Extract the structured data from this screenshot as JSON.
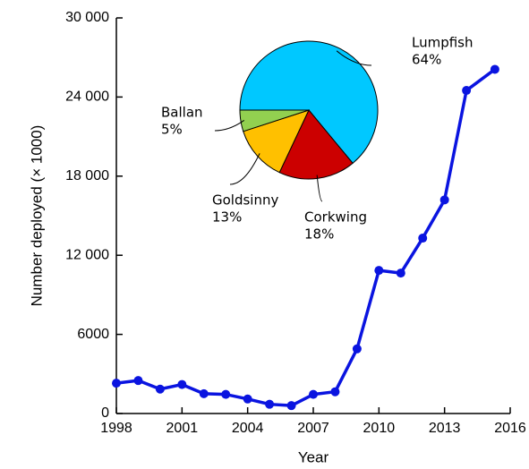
{
  "chart_data": [
    {
      "type": "line",
      "x_label": "Year",
      "y_label": "Number deployed (× 1000)",
      "x": [
        1998,
        1999,
        2000,
        2001,
        2002,
        2003,
        2004,
        2005,
        2006,
        2007,
        2008,
        2009,
        2010,
        2011,
        2012,
        2013,
        2014,
        2015.3
      ],
      "values": [
        2300,
        2500,
        1850,
        2200,
        1500,
        1450,
        1100,
        700,
        600,
        1450,
        1650,
        4900,
        10850,
        10650,
        13300,
        16200,
        24500,
        26100
      ],
      "color": "#0a14e0",
      "xlim": [
        1998,
        2016
      ],
      "xticks": [
        1998,
        2001,
        2004,
        2007,
        2010,
        2013,
        2016
      ],
      "ylim": [
        0,
        30000
      ],
      "yticks": [
        0,
        6000,
        {
          "value": 12000,
          "label": "12 000"
        },
        {
          "value": 18000,
          "label": "18 000"
        },
        {
          "value": 24000,
          "label": "24 000"
        },
        {
          "value": 30000,
          "label": "30 000"
        }
      ]
    },
    {
      "type": "pie",
      "categories": [
        "Lumpfish",
        "Corkwing",
        "Goldsinny",
        "Ballan"
      ],
      "values": [
        64,
        18,
        13,
        5
      ],
      "value_labels": [
        "64%",
        "18%",
        "13%",
        "5%"
      ],
      "colors": [
        "#00c8ff",
        "#cc0000",
        "#ffc000",
        "#92d050"
      ]
    }
  ]
}
